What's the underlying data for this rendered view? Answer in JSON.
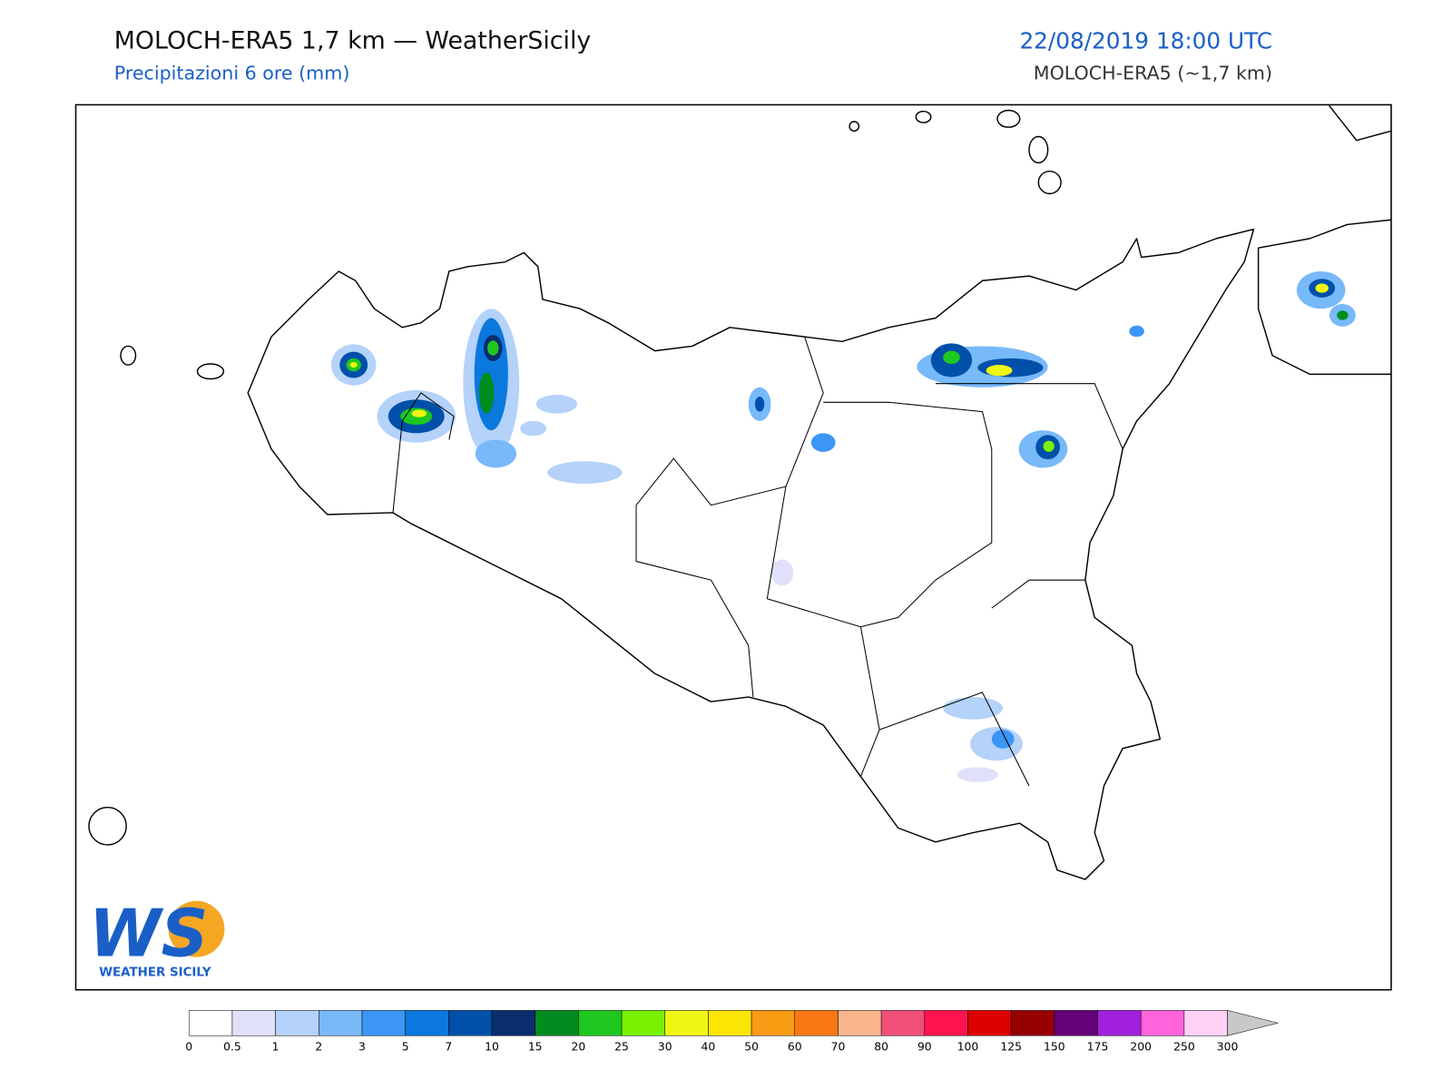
{
  "header": {
    "title": "MOLOCH-ERA5 1,7 km — WeatherSicily",
    "subtitle": "Precipitazioni 6 ore (mm)",
    "datetime": "22/08/2019 18:00 UTC",
    "model": "MOLOCH-ERA5 (~1,7 km)"
  },
  "logo": {
    "mark": "WS",
    "text": "WEATHER SICILY"
  },
  "colorbar": {
    "ticks": [
      0,
      0.5,
      1,
      2,
      3,
      5,
      7,
      10,
      15,
      20,
      25,
      30,
      40,
      50,
      60,
      70,
      80,
      90,
      100,
      125,
      150,
      175,
      200,
      250,
      300
    ],
    "colors": [
      "#ffffff",
      "#e0e0fa",
      "#b4d2fa",
      "#78b9fa",
      "#3c96f5",
      "#0a78dc",
      "#0050aa",
      "#0a2d6e",
      "#008c1e",
      "#1ec81e",
      "#78f000",
      "#f0f514",
      "#fae600",
      "#fa9b14",
      "#fa7814",
      "#fab48c",
      "#f05078",
      "#ff1450",
      "#dc0000",
      "#960000",
      "#640078",
      "#a020dc",
      "#ff64dc",
      "#ffd2f5"
    ],
    "extend_color": "#c8c8c8"
  }
}
